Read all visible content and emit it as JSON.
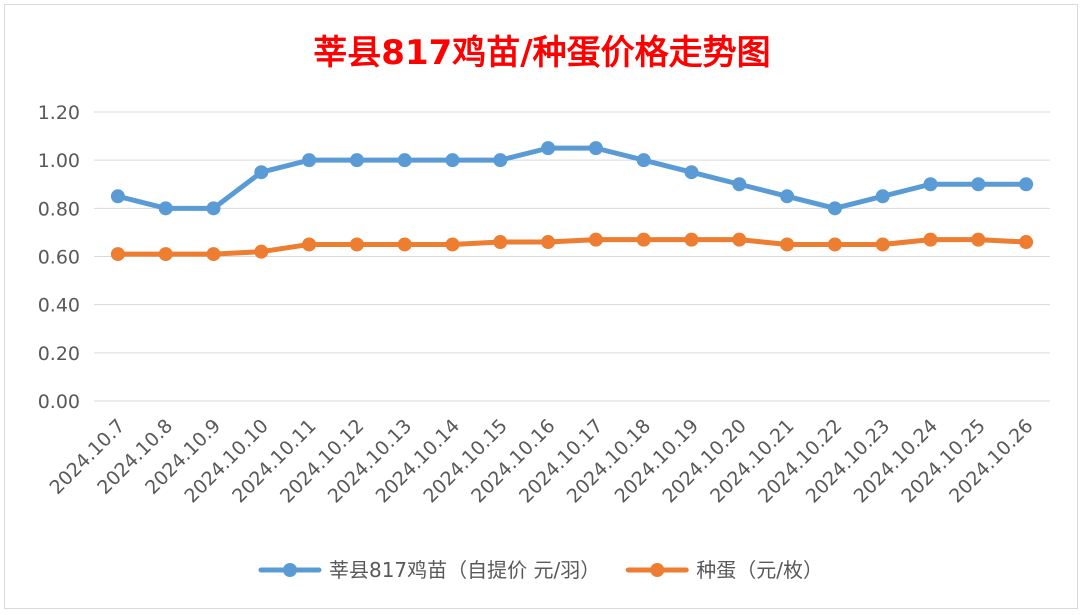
{
  "chart_data": {
    "type": "line",
    "title": "莘县817鸡苗/种蛋价格走势图",
    "title_color": "#ff0000",
    "categories": [
      "2024.10.7",
      "2024.10.8",
      "2024.10.9",
      "2024.10.10",
      "2024.10.11",
      "2024.10.12",
      "2024.10.13",
      "2024.10.14",
      "2024.10.15",
      "2024.10.16",
      "2024.10.17",
      "2024.10.18",
      "2024.10.19",
      "2024.10.20",
      "2024.10.21",
      "2024.10.22",
      "2024.10.23",
      "2024.10.24",
      "2024.10.25",
      "2024.10.26"
    ],
    "series": [
      {
        "name": "莘县817鸡苗（自提价 元/羽）",
        "color": "#5b9bd5",
        "values": [
          0.85,
          0.8,
          0.8,
          0.95,
          1.0,
          1.0,
          1.0,
          1.0,
          1.0,
          1.05,
          1.05,
          1.0,
          0.95,
          0.9,
          0.85,
          0.8,
          0.85,
          0.9,
          0.9,
          0.9
        ]
      },
      {
        "name": "种蛋（元/枚）",
        "color": "#ed7d31",
        "values": [
          0.61,
          0.61,
          0.61,
          0.62,
          0.65,
          0.65,
          0.65,
          0.65,
          0.66,
          0.66,
          0.67,
          0.67,
          0.67,
          0.67,
          0.65,
          0.65,
          0.65,
          0.67,
          0.67,
          0.66
        ]
      }
    ],
    "ylim": [
      0,
      1.2
    ],
    "yticks": [
      "0.00",
      "0.20",
      "0.40",
      "0.60",
      "0.80",
      "1.00",
      "1.20"
    ],
    "xlabel": "",
    "ylabel": "",
    "grid": true,
    "legend_position": "bottom",
    "gridline_color": "#d9d9d9",
    "tick_label_color": "#595959"
  }
}
